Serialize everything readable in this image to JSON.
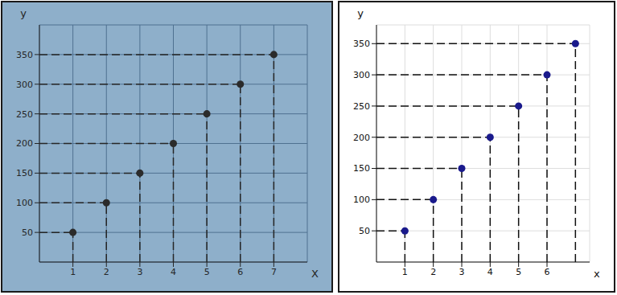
{
  "chart_data": [
    {
      "type": "scatter",
      "x": [
        1,
        2,
        3,
        4,
        5,
        6,
        7
      ],
      "values": [
        50,
        100,
        150,
        200,
        250,
        300,
        350
      ],
      "xlim": [
        0,
        8
      ],
      "ylim": [
        0,
        400
      ],
      "xticks": [
        1,
        2,
        3,
        4,
        5,
        6,
        7
      ],
      "yticks": [
        50,
        100,
        150,
        200,
        250,
        300,
        350
      ],
      "x_label": "X",
      "y_label": "y",
      "grid": true,
      "color": "#2b2b2b",
      "marker": "circle",
      "line_style": "dashed"
    },
    {
      "type": "scatter",
      "x": [
        1,
        2,
        3,
        4,
        5,
        6,
        7
      ],
      "values": [
        50,
        100,
        150,
        200,
        250,
        300,
        350
      ],
      "xlim": [
        0,
        7.5
      ],
      "ylim": [
        0,
        380
      ],
      "xticks": [
        1,
        2,
        3,
        4,
        5,
        6
      ],
      "yticks": [
        50,
        100,
        150,
        200,
        250,
        300,
        350
      ],
      "x_label": "x",
      "y_label": "y",
      "grid": true,
      "color": "#1a1a8c",
      "marker": "circle",
      "line_style": "dashed"
    }
  ]
}
